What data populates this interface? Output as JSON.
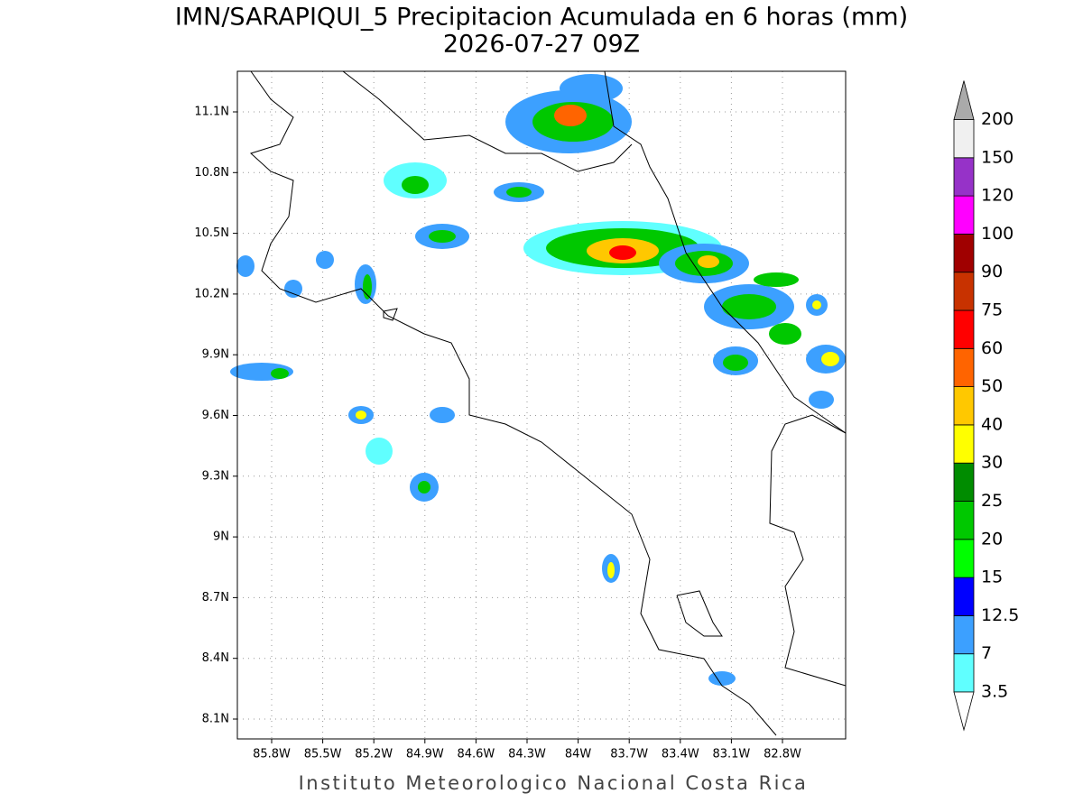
{
  "title": "IMN/SARAPIQUI_5 Precipitacion Acumulada en 6 horas (mm)",
  "subtitle": "2026-07-27 09Z",
  "x_axis_labels": [
    "85.8W",
    "85.5W",
    "85.2W",
    "84.9W",
    "84.6W",
    "84.3W",
    "84W",
    "83.7W",
    "83.4W",
    "83.1W",
    "82.8W"
  ],
  "y_axis_labels": [
    "11.1N",
    "10.8N",
    "10.5N",
    "10.2N",
    "9.9N",
    "9.6N",
    "9.3N",
    "9N",
    "8.7N",
    "8.4N",
    "8.1N"
  ],
  "colorbar": {
    "labels": [
      "3.5",
      "7",
      "12.5",
      "15",
      "20",
      "25",
      "30",
      "40",
      "50",
      "60",
      "75",
      "90",
      "100",
      "120",
      "150",
      "200"
    ],
    "colors": [
      "#60ffff",
      "#3ca0ff",
      "#0000ff",
      "#00ff00",
      "#00c800",
      "#008c00",
      "#ffff00",
      "#ffc800",
      "#ff6400",
      "#ff0000",
      "#c83200",
      "#a00000",
      "#ff00ff",
      "#9632c8",
      "#f0f0f0"
    ],
    "over_color": "#aaaaaa",
    "under_color": "#ffffff"
  },
  "footer": "Instituto Meteorologico Nacional Costa Rica"
}
